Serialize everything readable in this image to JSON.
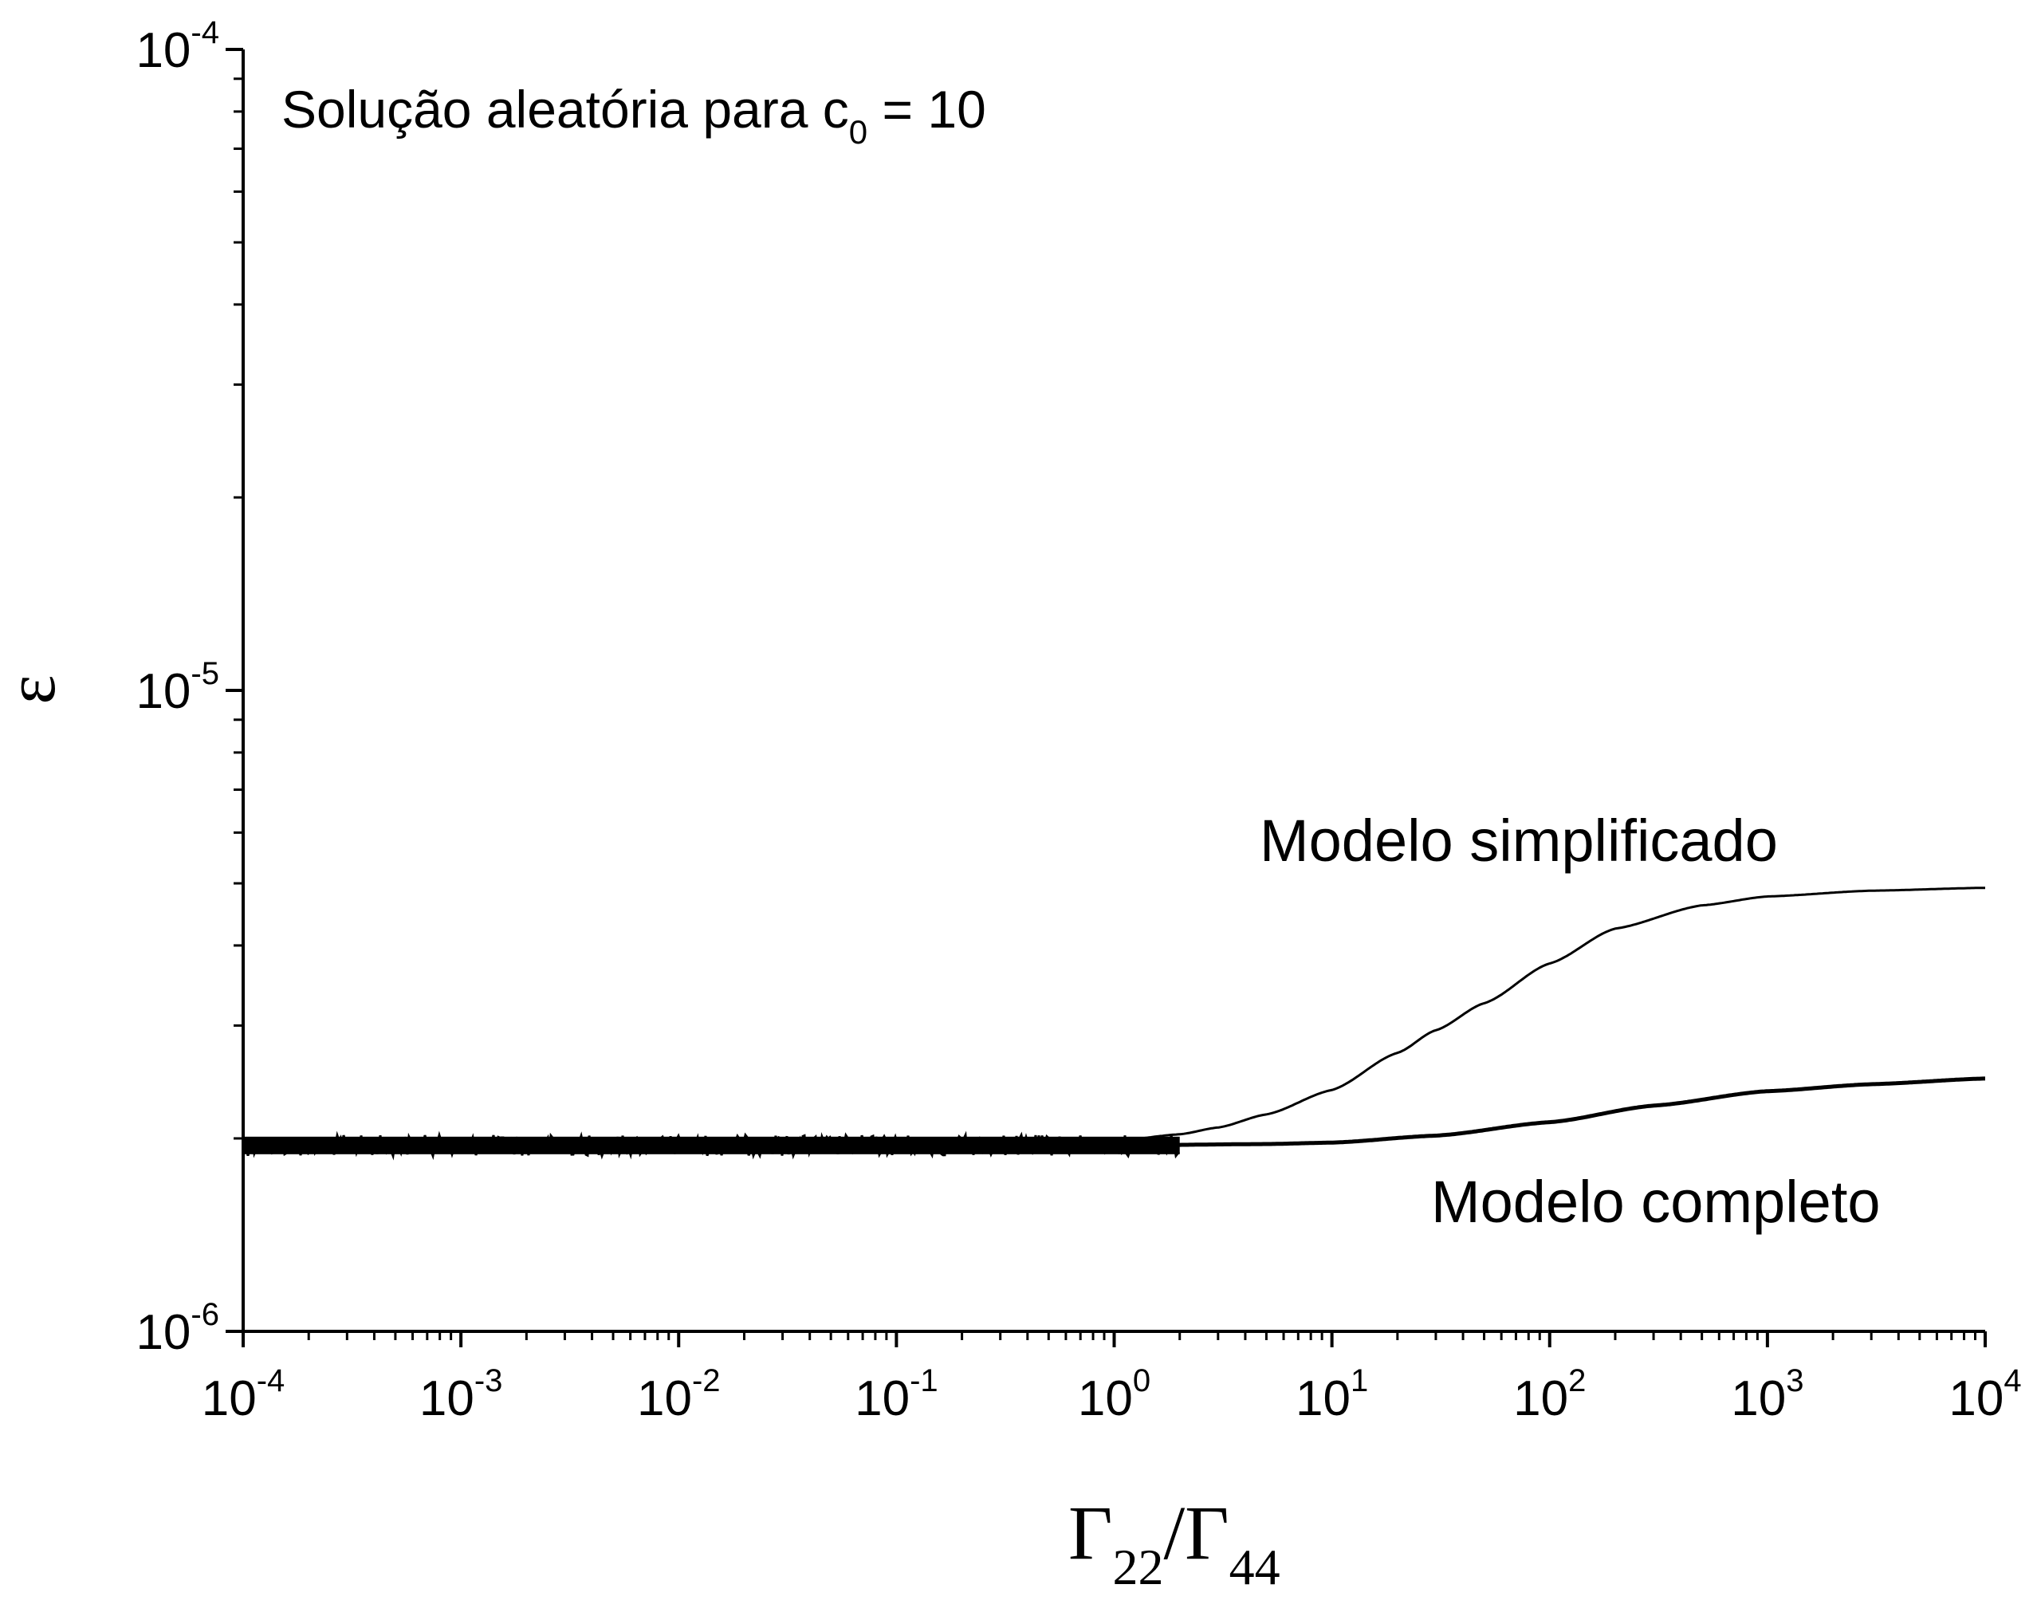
{
  "chart_data": {
    "type": "line",
    "xscale": "log",
    "yscale": "log",
    "xlim": [
      0.0001,
      10000
    ],
    "ylim": [
      1e-06,
      0.0001
    ],
    "grid": false,
    "legend": "none",
    "annotation_title": {
      "main": "Solução aleatória para c",
      "sub": "0",
      "tail": " = 10"
    },
    "xlabel": {
      "g1": "Γ",
      "s1": "22",
      "slash": "/",
      "g2": "Γ",
      "s2": "44"
    },
    "ylabel": "ε",
    "x_ticks": [
      {
        "value": 0.0001,
        "base": "10",
        "exp": "-4"
      },
      {
        "value": 0.001,
        "base": "10",
        "exp": "-3"
      },
      {
        "value": 0.01,
        "base": "10",
        "exp": "-2"
      },
      {
        "value": 0.1,
        "base": "10",
        "exp": "-1"
      },
      {
        "value": 1,
        "base": "10",
        "exp": "0"
      },
      {
        "value": 10,
        "base": "10",
        "exp": "1"
      },
      {
        "value": 100,
        "base": "10",
        "exp": "2"
      },
      {
        "value": 1000,
        "base": "10",
        "exp": "3"
      },
      {
        "value": 10000,
        "base": "10",
        "exp": "4"
      }
    ],
    "y_ticks": [
      {
        "value": 1e-06,
        "base": "10",
        "exp": "-6"
      },
      {
        "value": 1e-05,
        "base": "10",
        "exp": "-5"
      },
      {
        "value": 0.0001,
        "base": "10",
        "exp": "-4"
      }
    ],
    "series": [
      {
        "name": "Modelo simplificado",
        "x": [
          0.0001,
          0.001,
          0.01,
          0.1,
          1,
          2,
          3,
          5,
          10,
          20,
          30,
          50,
          100,
          200,
          500,
          1000,
          3000,
          10000
        ],
        "y": [
          1.95e-06,
          1.95e-06,
          1.95e-06,
          1.95e-06,
          1.98e-06,
          2.03e-06,
          2.08e-06,
          2.18e-06,
          2.38e-06,
          2.72e-06,
          2.95e-06,
          3.25e-06,
          3.75e-06,
          4.25e-06,
          4.62e-06,
          4.77e-06,
          4.87e-06,
          4.92e-06
        ]
      },
      {
        "name": "Modelo completo",
        "x": [
          0.0001,
          0.001,
          0.01,
          0.1,
          1,
          5,
          10,
          30,
          100,
          300,
          1000,
          3000,
          10000
        ],
        "y": [
          1.95e-06,
          1.95e-06,
          1.95e-06,
          1.95e-06,
          1.95e-06,
          1.96e-06,
          1.97e-06,
          2.02e-06,
          2.12e-06,
          2.25e-06,
          2.37e-06,
          2.43e-06,
          2.48e-06
        ]
      }
    ]
  }
}
